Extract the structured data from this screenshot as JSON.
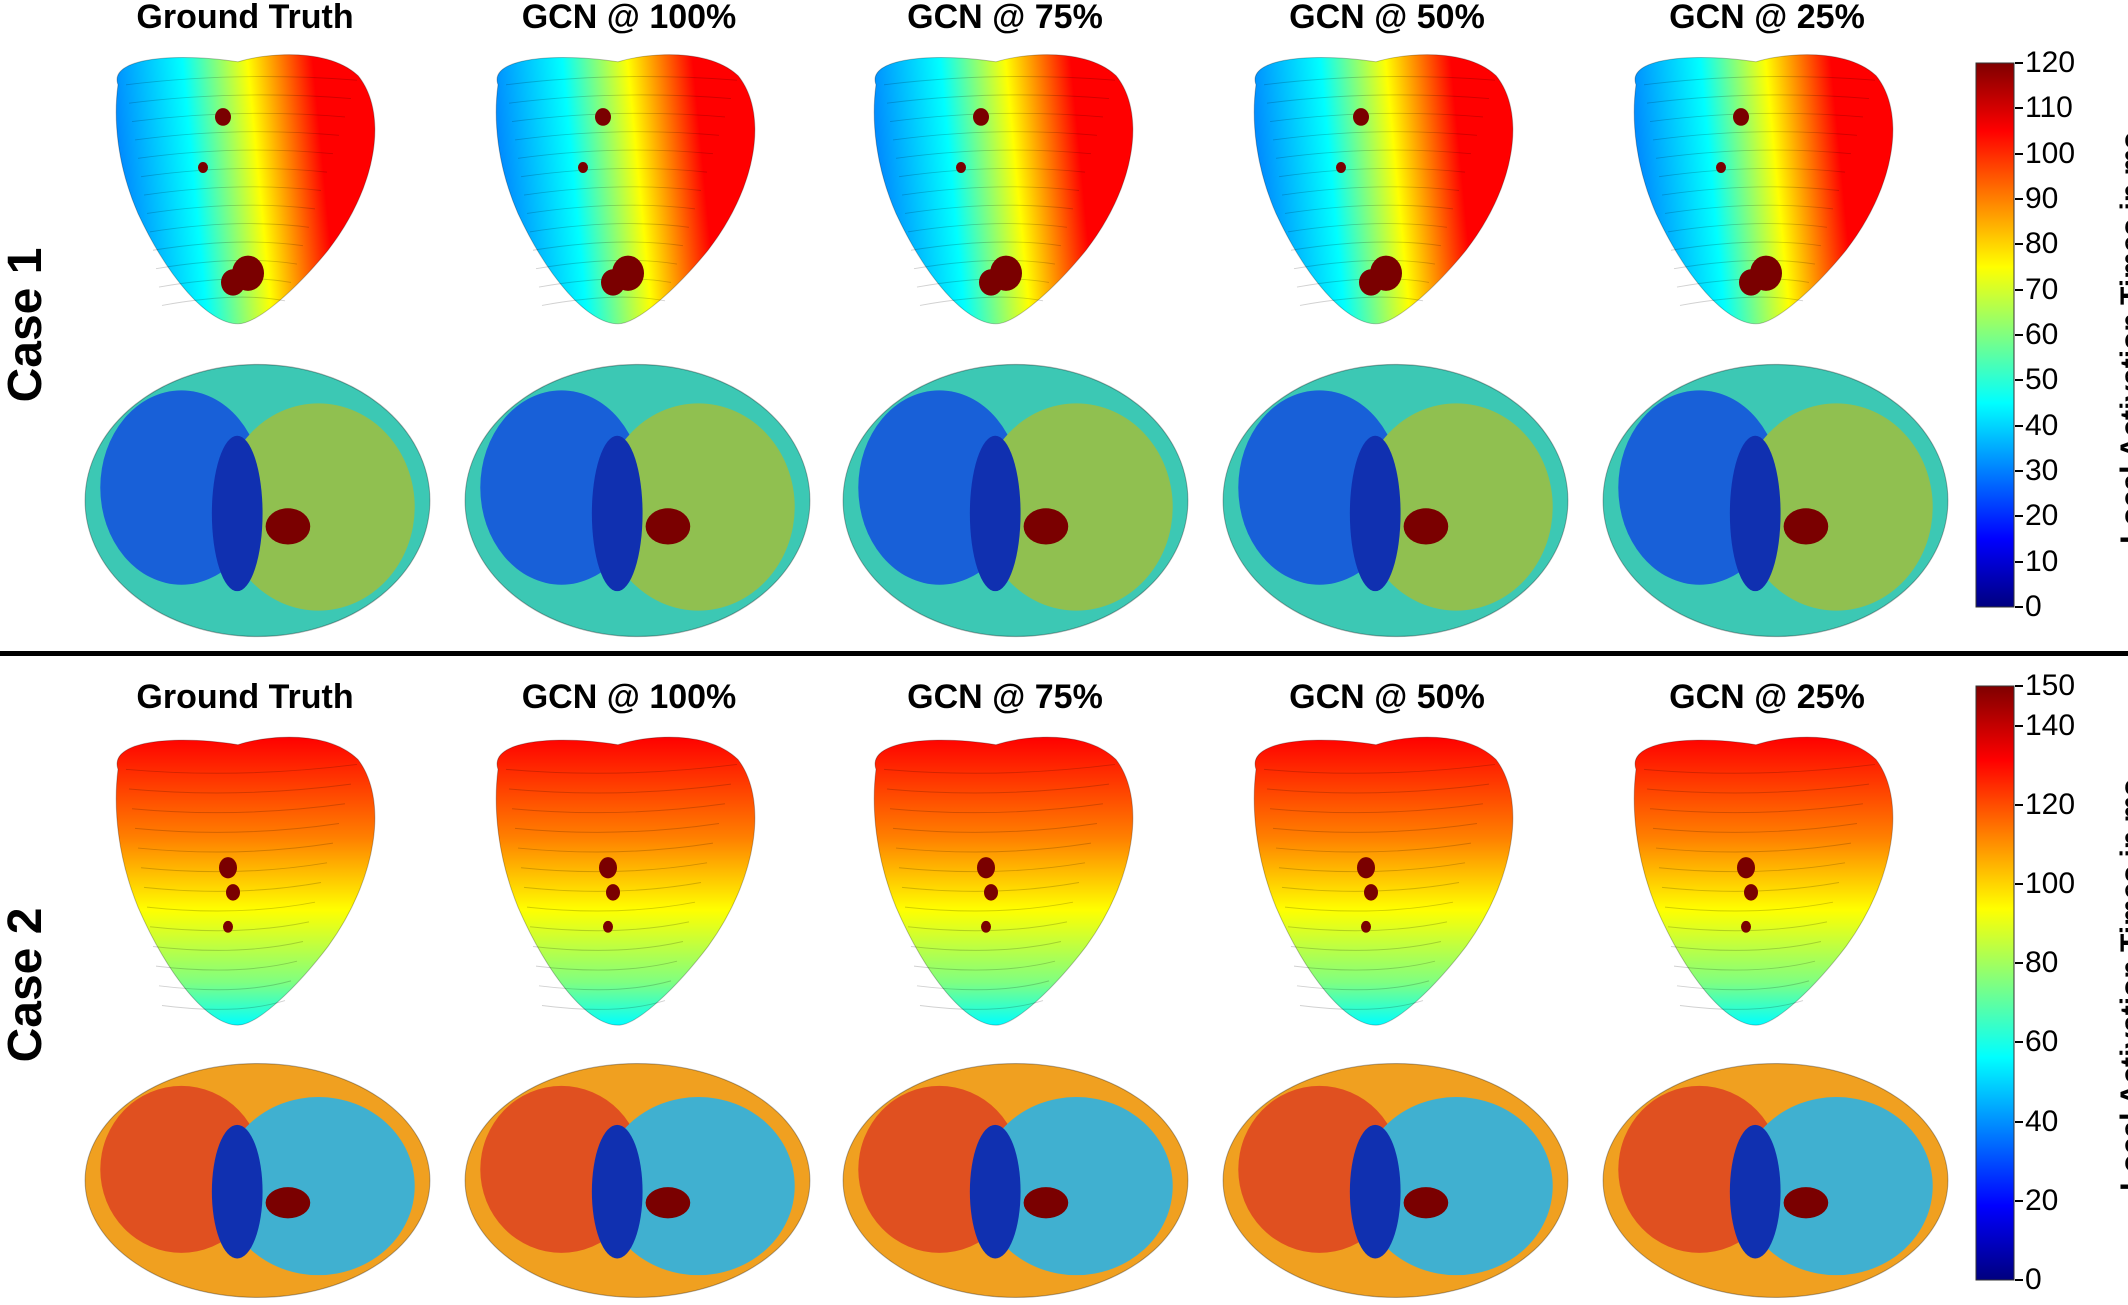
{
  "columns": [
    "Ground Truth",
    "GCN @ 100%",
    "GCN @ 75%",
    "GCN @ 50%",
    "GCN @ 25%"
  ],
  "cases": [
    {
      "label": "Case 1",
      "colorbar": {
        "title": "Local Activation Times in ms",
        "ticks": [
          "120",
          "110",
          "100",
          "90",
          "80",
          "70",
          "60",
          "50",
          "40",
          "30",
          "20",
          "10",
          "0"
        ]
      }
    },
    {
      "label": "Case 2",
      "colorbar": {
        "title": "Local Activation Times in ms",
        "ticks": [
          "150",
          "140",
          "120",
          "100",
          "80",
          "60",
          "40",
          "20",
          "0"
        ]
      }
    }
  ],
  "colors": {
    "jet_stops": [
      "#00007f",
      "#0000ff",
      "#0080ff",
      "#00ffff",
      "#80ff80",
      "#ffff00",
      "#ff8000",
      "#ff0000",
      "#7f0000"
    ],
    "scar": "#7a0000"
  }
}
